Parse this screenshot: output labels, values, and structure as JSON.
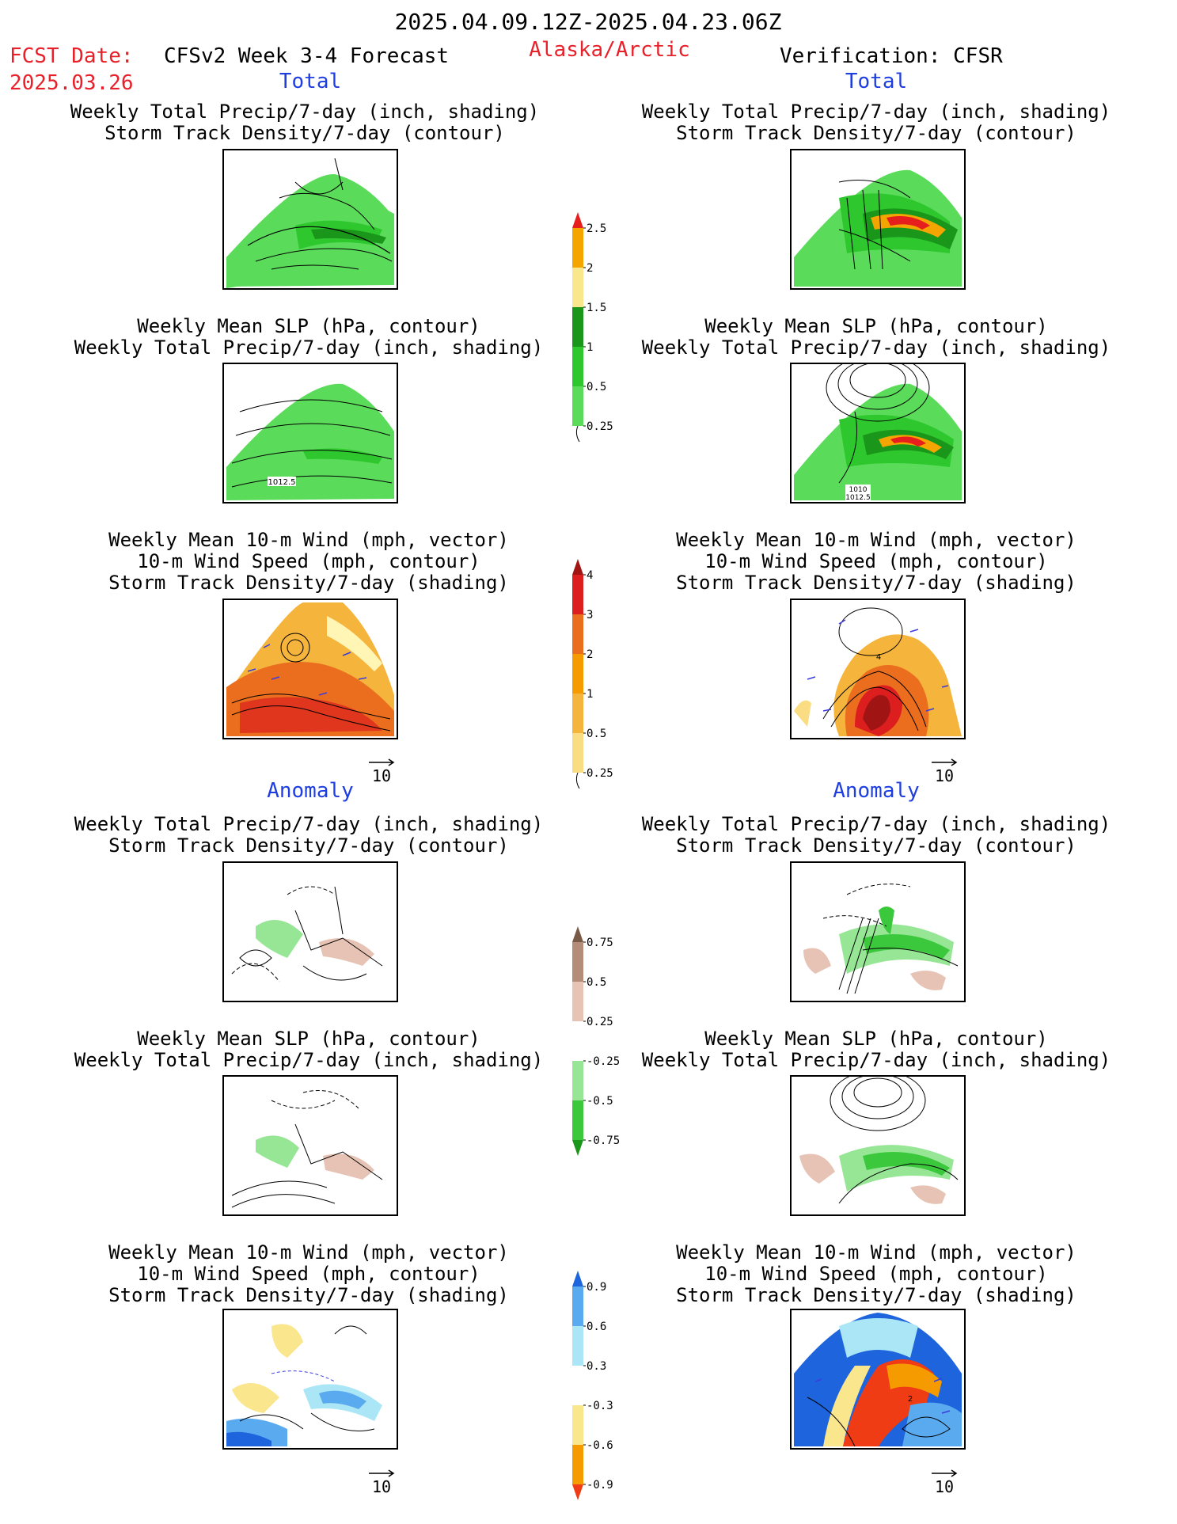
{
  "header": {
    "period": "2025.04.09.12Z-2025.04.23.06Z",
    "fcst_label": "FCST Date:",
    "fcst_date": "2025.03.26",
    "model": "CFSv2 Week 3-4 Forecast",
    "region": "Alaska/Arctic",
    "verification": "Verification: CFSR"
  },
  "sections": {
    "left_total": "Total",
    "right_total": "Total",
    "left_anom": "Anomaly",
    "right_anom": "Anomaly"
  },
  "titles": {
    "precip_storm": [
      "Weekly Total Precip/7-day (inch, shading)",
      "Storm Track Density/7-day (contour)"
    ],
    "slp_precip": [
      "Weekly Mean SLP (hPa, contour)",
      "Weekly Total Precip/7-day (inch, shading)"
    ],
    "wind": [
      "Weekly Mean 10-m Wind (mph, vector)",
      "10-m Wind Speed (mph, contour)",
      "Storm Track Density/7-day (shading)"
    ]
  },
  "map_labels": {
    "fcst_slp_total": "1012.5",
    "cfsr_slp_total_a": "1010",
    "cfsr_slp_total_b": "1012.5",
    "cfsr_wind_total": "4",
    "cfsr_wind_anom": "2"
  },
  "vector_reference": "10",
  "colorbars": {
    "precip_total": {
      "labels": [
        "0.25",
        "0.5",
        "1",
        "1.5",
        "2",
        "2.5"
      ],
      "colors": [
        "#b4f0b4",
        "#5adc5a",
        "#2ec82e",
        "#1a961a",
        "#fae68c",
        "#f5a500",
        "#e61e1e"
      ]
    },
    "storm_total": {
      "labels": [
        "0.25",
        "0.5",
        "1",
        "2",
        "3",
        "4"
      ],
      "colors": [
        "#fff5b4",
        "#fadc82",
        "#f5b43c",
        "#f59b00",
        "#eb6e1e",
        "#dc1e1e",
        "#a01414"
      ]
    },
    "precip_anom": {
      "labels": [
        "0.75",
        "0.5",
        "0.25",
        "-0.25",
        "-0.5",
        "-0.75"
      ],
      "colors": [
        "#1a961a",
        "#3cc83c",
        "#96e696",
        "#ffffff",
        "#e6c3b4",
        "#b48c78",
        "#785a46"
      ]
    },
    "storm_anom": {
      "labels": [
        "0.9",
        "0.6",
        "0.3",
        "-0.3",
        "-0.6",
        "-0.9"
      ],
      "colors": [
        "#f03c14",
        "#f59b00",
        "#fae68c",
        "#ffffff",
        "#aae6f5",
        "#5aaaf0",
        "#1e64dc"
      ]
    }
  }
}
